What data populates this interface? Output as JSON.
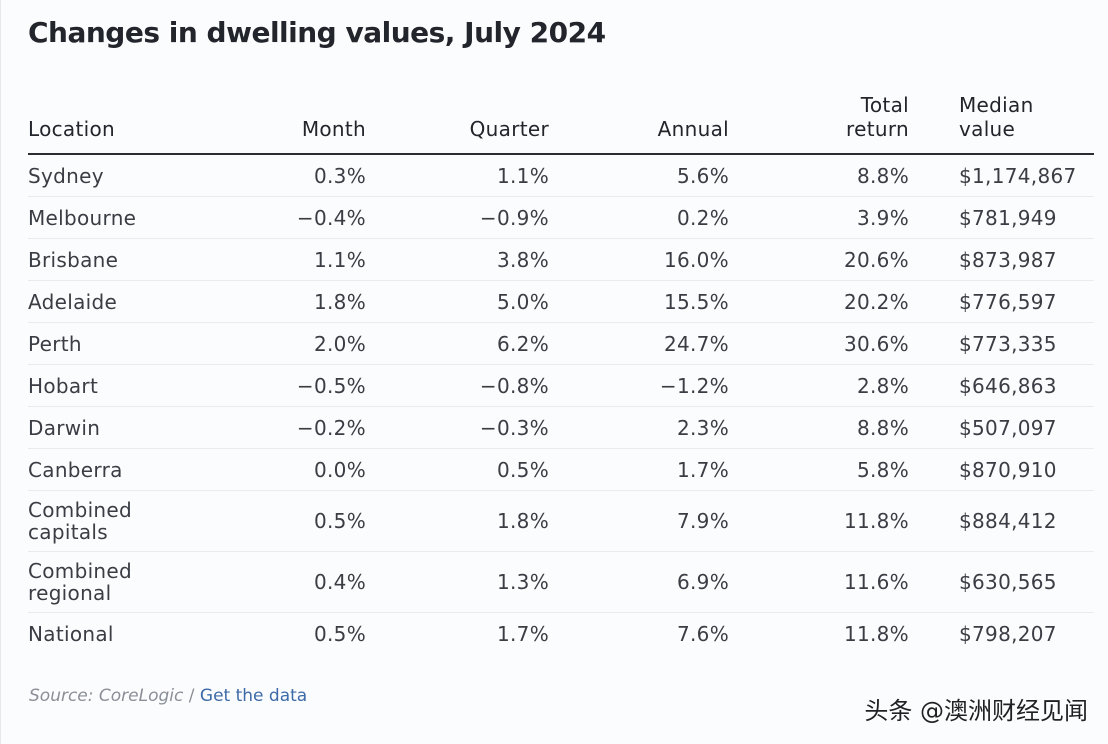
{
  "title": "Changes in dwelling values, July 2024",
  "table": {
    "headers": {
      "location": "Location",
      "month": "Month",
      "quarter": "Quarter",
      "annual": "Annual",
      "total_return_line1": "Total",
      "total_return_line2": "return",
      "median_line1": "Median",
      "median_line2": "value"
    },
    "rows": [
      {
        "location": "Sydney",
        "location2": "",
        "month": "0.3%",
        "quarter": "1.1%",
        "annual": "5.6%",
        "total_return": "8.8%",
        "median_value": "$1,174,867"
      },
      {
        "location": "Melbourne",
        "location2": "",
        "month": "−0.4%",
        "quarter": "−0.9%",
        "annual": "0.2%",
        "total_return": "3.9%",
        "median_value": "$781,949"
      },
      {
        "location": "Brisbane",
        "location2": "",
        "month": "1.1%",
        "quarter": "3.8%",
        "annual": "16.0%",
        "total_return": "20.6%",
        "median_value": "$873,987"
      },
      {
        "location": "Adelaide",
        "location2": "",
        "month": "1.8%",
        "quarter": "5.0%",
        "annual": "15.5%",
        "total_return": "20.2%",
        "median_value": "$776,597"
      },
      {
        "location": "Perth",
        "location2": "",
        "month": "2.0%",
        "quarter": "6.2%",
        "annual": "24.7%",
        "total_return": "30.6%",
        "median_value": "$773,335"
      },
      {
        "location": "Hobart",
        "location2": "",
        "month": "−0.5%",
        "quarter": "−0.8%",
        "annual": "−1.2%",
        "total_return": "2.8%",
        "median_value": "$646,863"
      },
      {
        "location": "Darwin",
        "location2": "",
        "month": "−0.2%",
        "quarter": "−0.3%",
        "annual": "2.3%",
        "total_return": "8.8%",
        "median_value": "$507,097"
      },
      {
        "location": "Canberra",
        "location2": "",
        "month": "0.0%",
        "quarter": "0.5%",
        "annual": "1.7%",
        "total_return": "5.8%",
        "median_value": "$870,910"
      },
      {
        "location": "Combined",
        "location2": "capitals",
        "month": "0.5%",
        "quarter": "1.8%",
        "annual": "7.9%",
        "total_return": "11.8%",
        "median_value": "$884,412"
      },
      {
        "location": "Combined",
        "location2": "regional",
        "month": "0.4%",
        "quarter": "1.3%",
        "annual": "6.9%",
        "total_return": "11.6%",
        "median_value": "$630,565"
      },
      {
        "location": "National",
        "location2": "",
        "month": "0.5%",
        "quarter": "1.7%",
        "annual": "7.6%",
        "total_return": "11.8%",
        "median_value": "$798,207"
      }
    ]
  },
  "source": {
    "label": "Source: CoreLogic",
    "separator": " / ",
    "link_text": "Get the data"
  },
  "watermark": "头条 @澳洲财经见闻",
  "chart_data": {
    "type": "table",
    "title": "Changes in dwelling values, July 2024",
    "columns": [
      "Location",
      "Month",
      "Quarter",
      "Annual",
      "Total return",
      "Median value"
    ],
    "rows": [
      [
        "Sydney",
        0.3,
        1.1,
        5.6,
        8.8,
        1174867
      ],
      [
        "Melbourne",
        -0.4,
        -0.9,
        0.2,
        3.9,
        781949
      ],
      [
        "Brisbane",
        1.1,
        3.8,
        16.0,
        20.6,
        873987
      ],
      [
        "Adelaide",
        1.8,
        5.0,
        15.5,
        20.2,
        776597
      ],
      [
        "Perth",
        2.0,
        6.2,
        24.7,
        30.6,
        773335
      ],
      [
        "Hobart",
        -0.5,
        -0.8,
        -1.2,
        2.8,
        646863
      ],
      [
        "Darwin",
        -0.2,
        -0.3,
        2.3,
        8.8,
        507097
      ],
      [
        "Canberra",
        0.0,
        0.5,
        1.7,
        5.8,
        870910
      ],
      [
        "Combined capitals",
        0.5,
        1.8,
        7.9,
        11.8,
        884412
      ],
      [
        "Combined regional",
        0.4,
        1.3,
        6.9,
        11.6,
        630565
      ],
      [
        "National",
        0.5,
        1.7,
        7.6,
        11.8,
        798207
      ]
    ]
  }
}
